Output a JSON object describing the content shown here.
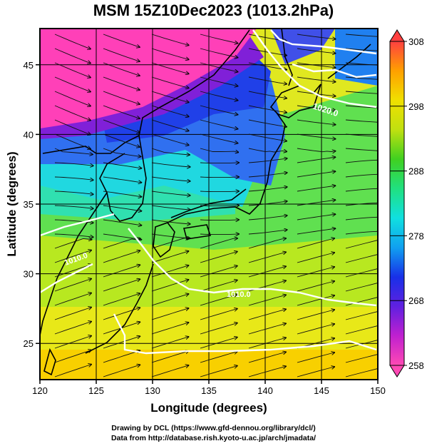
{
  "title": "MSM 15Z10Dec2023 (1013.2hPa)",
  "axes": {
    "xlabel": "Longitude (degrees)",
    "ylabel": "Latitude  (degrees)",
    "xticks": [
      "120",
      "125",
      "130",
      "135",
      "140",
      "145",
      "150"
    ],
    "yticks": [
      "25",
      "30",
      "35",
      "40",
      "45"
    ]
  },
  "colorbar": {
    "ticks": [
      "258",
      "268",
      "278",
      "288",
      "298",
      "308"
    ],
    "min": 258,
    "max": 308,
    "colors": [
      "#ff49b4",
      "#c020d0",
      "#6020e0",
      "#1830e8",
      "#10a0f0",
      "#10e0e0",
      "#20e080",
      "#40d020",
      "#c0e010",
      "#f0e000",
      "#ffa000",
      "#ff4040"
    ]
  },
  "contours": [
    {
      "label": "1020.0"
    },
    {
      "label": "1010.0"
    },
    {
      "label": "1010.0"
    }
  ],
  "credits": {
    "line1": "Drawing by DCL (https://www.gfd-dennou.org/library/dcl/)",
    "line2": "Data from http://database.rish.kyoto-u.ac.jp/arch/jmadata/"
  },
  "chart_data": {
    "type": "heatmap",
    "title": "MSM 15Z10Dec2023 (1013.2hPa)",
    "xlabel": "Longitude (degrees)",
    "ylabel": "Latitude  (degrees)",
    "xlim": [
      120,
      150
    ],
    "ylim": [
      22.4,
      47.6
    ],
    "x_ticks": [
      120,
      125,
      130,
      135,
      140,
      145,
      150
    ],
    "y_ticks": [
      25,
      30,
      35,
      40,
      45
    ],
    "colorbar_range": [
      258,
      308
    ],
    "colorbar_ticks": [
      258,
      268,
      278,
      288,
      298,
      308
    ],
    "grid": true,
    "contour_labels": [
      "1020.0",
      "1010.0",
      "1010.0"
    ]
  }
}
